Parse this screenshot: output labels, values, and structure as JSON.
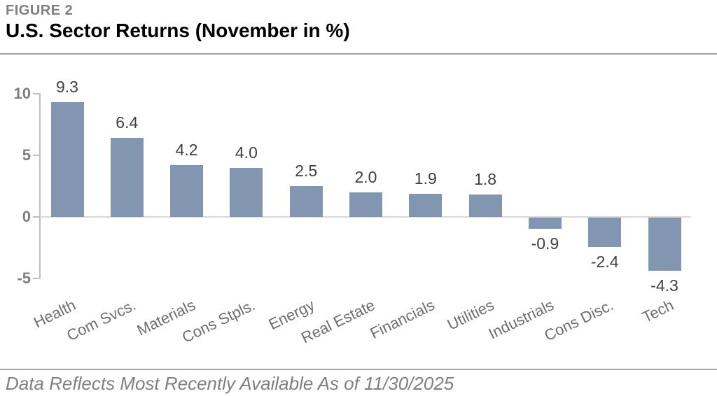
{
  "figure": {
    "label": "FIGURE 2",
    "title": "U.S. Sector Returns (November in %)"
  },
  "chart_data": {
    "type": "bar",
    "title": "U.S. Sector Returns (November in %)",
    "categories": [
      "Health",
      "Com Svcs.",
      "Materials",
      "Cons Stpls.",
      "Energy",
      "Real Estate",
      "Financials",
      "Utilities",
      "Industrials",
      "Cons Disc.",
      "Tech"
    ],
    "values": [
      9.3,
      6.4,
      4.2,
      4.0,
      2.5,
      2.0,
      1.9,
      1.8,
      -0.9,
      -2.4,
      -4.3
    ],
    "value_labels": [
      "9.3",
      "6.4",
      "4.2",
      "4.0",
      "2.5",
      "2.0",
      "1.9",
      "1.8",
      "-0.9",
      "-2.4",
      "-4.3"
    ],
    "yticks": [
      10,
      5,
      0,
      -5
    ],
    "ylim": [
      -5,
      10
    ],
    "xlabel": "",
    "ylabel": "",
    "grid": false,
    "legend_position": "none",
    "bar_color": "#8296B2",
    "value_label_color": "#3F3F3F",
    "axis_tick_label_color": "#7F7F7F",
    "category_label_color": "#6E6E6E",
    "axis_line_color": "#BFBFBF",
    "zero_line_color": "#D9D9D9"
  },
  "footer": {
    "note": "Data Reflects Most Recently Available As of 11/30/2025"
  }
}
